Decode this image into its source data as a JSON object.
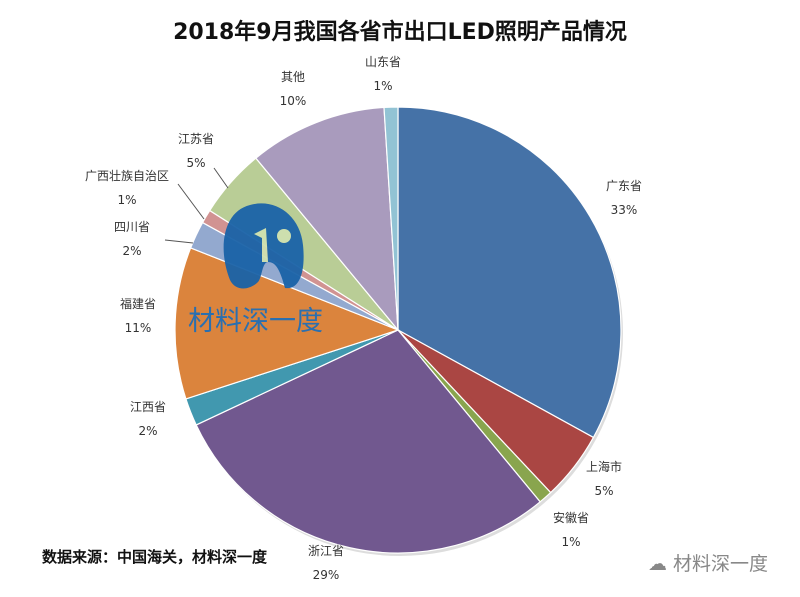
{
  "chart_data": {
    "type": "pie",
    "title": "2018年9月我国各省市出口LED照明产品情况",
    "start": "top, clockwise",
    "slices": [
      {
        "label": "广东省",
        "value": 33,
        "pct": "33%",
        "color": "#4572a7"
      },
      {
        "label": "上海市",
        "value": 5,
        "pct": "5%",
        "color": "#aa4643"
      },
      {
        "label": "安徽省",
        "value": 1,
        "pct": "1%",
        "color": "#89a54e"
      },
      {
        "label": "浙江省",
        "value": 29,
        "pct": "29%",
        "color": "#71588f"
      },
      {
        "label": "江西省",
        "value": 2,
        "pct": "2%",
        "color": "#4198af"
      },
      {
        "label": "福建省",
        "value": 11,
        "pct": "11%",
        "color": "#db843d"
      },
      {
        "label": "四川省",
        "value": 2,
        "pct": "2%",
        "color": "#93a9cf"
      },
      {
        "label": "广西壮族自治区",
        "value": 1,
        "pct": "1%",
        "color": "#d19392"
      },
      {
        "label": "江苏省",
        "value": 5,
        "pct": "5%",
        "color": "#b9cd96"
      },
      {
        "label": "其他",
        "value": 10,
        "pct": "10%",
        "color": "#a99bbd"
      },
      {
        "label": "山东省",
        "value": 1,
        "pct": "1%",
        "color": "#92c3d4"
      }
    ]
  },
  "source": "数据来源：中国海关，材料深一度",
  "watermark": "材料深一度",
  "watermark_corner": "材料深一度"
}
